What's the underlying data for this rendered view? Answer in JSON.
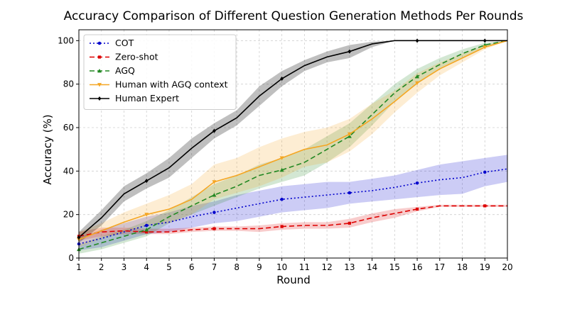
{
  "chart_data": {
    "type": "line",
    "title": "Accuracy Comparison of Different Question Generation Methods Per Rounds",
    "xlabel": "Round",
    "ylabel": "Accuracy (%)",
    "x": [
      1,
      2,
      3,
      4,
      5,
      6,
      7,
      8,
      9,
      10,
      11,
      12,
      13,
      14,
      15,
      16,
      17,
      18,
      19,
      20
    ],
    "xlim": [
      1,
      20
    ],
    "ylim": [
      0,
      105
    ],
    "yticks": [
      0,
      20,
      40,
      60,
      80,
      100
    ],
    "grid": true,
    "legend_position": "top-left",
    "series": [
      {
        "name": "COT",
        "color": "#0000cc",
        "style": "dotted",
        "marker": "circle",
        "values": [
          6.5,
          9,
          12,
          15,
          16.5,
          19,
          21,
          23,
          25,
          27,
          28,
          29,
          30,
          31,
          32.5,
          34.5,
          36,
          37,
          39.5,
          41
        ],
        "lower": [
          3.5,
          5,
          8,
          11,
          12,
          14,
          16,
          17,
          19,
          21,
          22,
          23,
          25,
          26,
          27,
          28,
          29,
          29.5,
          33,
          35
        ],
        "upper": [
          9.5,
          13,
          16,
          19,
          21,
          24,
          26,
          29,
          31,
          33,
          34,
          35,
          35,
          36.5,
          38,
          40.5,
          43,
          44.5,
          46,
          47.5
        ]
      },
      {
        "name": "Zero-shot",
        "color": "#dd0000",
        "style": "dashed",
        "marker": "square",
        "values": [
          10,
          12,
          12.5,
          12,
          12,
          13,
          13.5,
          13.5,
          13.5,
          14.5,
          15,
          15,
          16,
          18.5,
          20.5,
          22.5,
          24,
          24,
          24,
          24
        ],
        "lower": [
          8,
          10,
          11,
          11,
          11,
          12,
          12.5,
          12.5,
          12,
          13,
          13.5,
          13.5,
          14,
          16.5,
          18.5,
          21.5,
          23.5,
          23.5,
          23.5,
          23.5
        ],
        "upper": [
          12,
          14,
          14,
          13.5,
          13.5,
          14,
          14.5,
          14.5,
          15,
          16,
          16.5,
          16.5,
          18,
          20.5,
          22.5,
          23.5,
          24.5,
          24.5,
          24.5,
          24.5
        ]
      },
      {
        "name": "AGQ",
        "color": "#228822",
        "style": "dashed",
        "marker": "triangle",
        "values": [
          4,
          7,
          10,
          13,
          19,
          24,
          29,
          33,
          38,
          40.5,
          44,
          50,
          56,
          66,
          76,
          83.5,
          89,
          94,
          98,
          100
        ],
        "lower": [
          2,
          4,
          7,
          10,
          16,
          20,
          24,
          28,
          32,
          35,
          38,
          44,
          51,
          61,
          72,
          80,
          87,
          92,
          97,
          100
        ],
        "upper": [
          6,
          10,
          13,
          17,
          22,
          28,
          34,
          38,
          43,
          46,
          50,
          56,
          62,
          71,
          80,
          87,
          92,
          96,
          99,
          100
        ]
      },
      {
        "name": "Human with AGQ context",
        "color": "#f5a623",
        "style": "solid",
        "marker": "triangle-down",
        "values": [
          8.5,
          12.5,
          16.5,
          20,
          22.5,
          27,
          35,
          38,
          42,
          46,
          50,
          52,
          57,
          64,
          72,
          80.5,
          87,
          92,
          97,
          100
        ],
        "lower": [
          5,
          9,
          12,
          15,
          16,
          20,
          27,
          30,
          33,
          37,
          42,
          44,
          49,
          57,
          67,
          76,
          84,
          90,
          96,
          100
        ],
        "upper": [
          12,
          16,
          21,
          25,
          29,
          34,
          43,
          46,
          51,
          55,
          58,
          60,
          64,
          71,
          77,
          85,
          90,
          94,
          98,
          100
        ]
      },
      {
        "name": "Human Expert",
        "color": "#000000",
        "style": "solid",
        "marker": "diamond",
        "values": [
          9.5,
          18.5,
          29.5,
          35.5,
          41.5,
          50.5,
          58.5,
          64.5,
          74.5,
          82.5,
          88.5,
          92.5,
          95,
          98.5,
          100,
          100,
          100,
          100,
          100,
          100
        ],
        "lower": [
          7,
          15,
          26,
          32,
          37,
          46,
          55,
          61,
          70,
          79,
          86,
          90,
          92,
          97,
          100,
          100,
          100,
          100,
          100,
          100
        ],
        "upper": [
          12,
          22,
          33,
          39,
          46,
          55,
          62,
          68,
          79,
          86,
          91,
          95,
          98,
          99.5,
          100,
          100,
          100,
          100,
          100,
          100
        ]
      }
    ]
  }
}
